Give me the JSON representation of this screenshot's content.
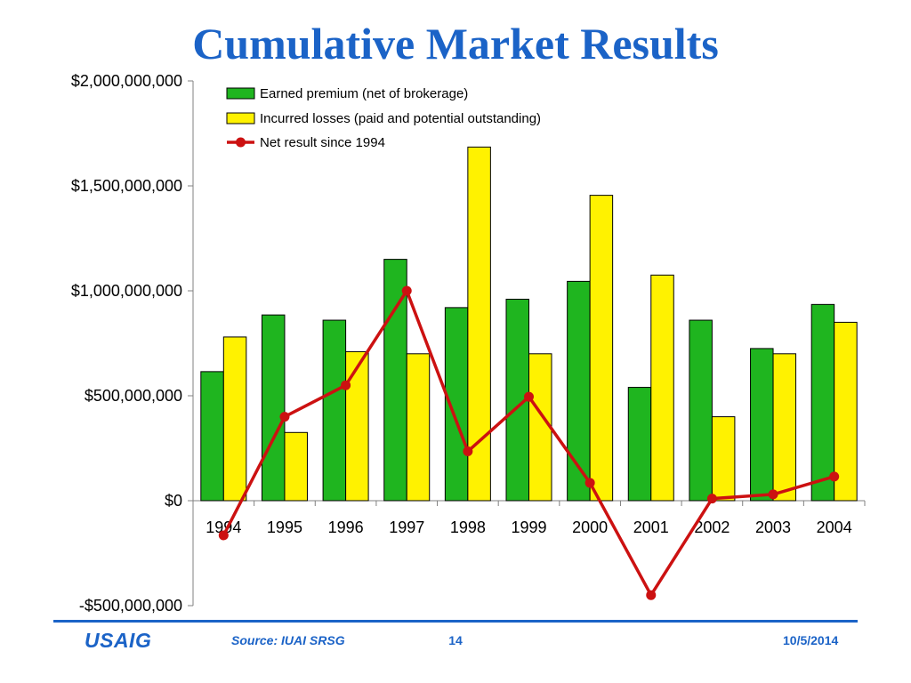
{
  "slide": {
    "title": "Cumulative Market Results"
  },
  "footer": {
    "logo_text": "USAIG",
    "source": "Source: IUAI SRSG",
    "page_number": "14",
    "date": "10/5/2014"
  },
  "colors": {
    "title": "#1b63c7",
    "earned_bar": "#1fb51f",
    "losses_bar": "#fff200",
    "net_line": "#cc1111",
    "footer": "#1b63c7"
  },
  "chart_data": {
    "type": "bar",
    "title": "",
    "xlabel": "",
    "ylabel": "",
    "categories": [
      "1994",
      "1995",
      "1996",
      "1997",
      "1998",
      "1999",
      "2000",
      "2001",
      "2002",
      "2003",
      "2004"
    ],
    "ylim": [
      -500000000,
      2000000000
    ],
    "yticks": [
      -500000000,
      0,
      500000000,
      1000000000,
      1500000000,
      2000000000
    ],
    "ytick_labels": [
      "-$500,000,000",
      "$0",
      "$500,000,000",
      "$1,000,000,000",
      "$1,500,000,000",
      "$2,000,000,000"
    ],
    "grid": false,
    "legend_position": "top-left",
    "series": [
      {
        "name": "Earned premium (net of brokerage)",
        "type": "bar",
        "color": "#1fb51f",
        "values": [
          615000000,
          885000000,
          860000000,
          1150000000,
          920000000,
          960000000,
          1045000000,
          540000000,
          860000000,
          725000000,
          935000000
        ]
      },
      {
        "name": "Incurred losses (paid and potential outstanding)",
        "type": "bar",
        "color": "#fff200",
        "values": [
          780000000,
          325000000,
          710000000,
          700000000,
          1685000000,
          700000000,
          1455000000,
          1075000000,
          400000000,
          700000000,
          850000000
        ]
      },
      {
        "name": "Net result since 1994",
        "type": "line",
        "color": "#cc1111",
        "values": [
          -165000000,
          400000000,
          550000000,
          1000000000,
          235000000,
          495000000,
          85000000,
          -450000000,
          10000000,
          30000000,
          115000000
        ]
      }
    ]
  }
}
